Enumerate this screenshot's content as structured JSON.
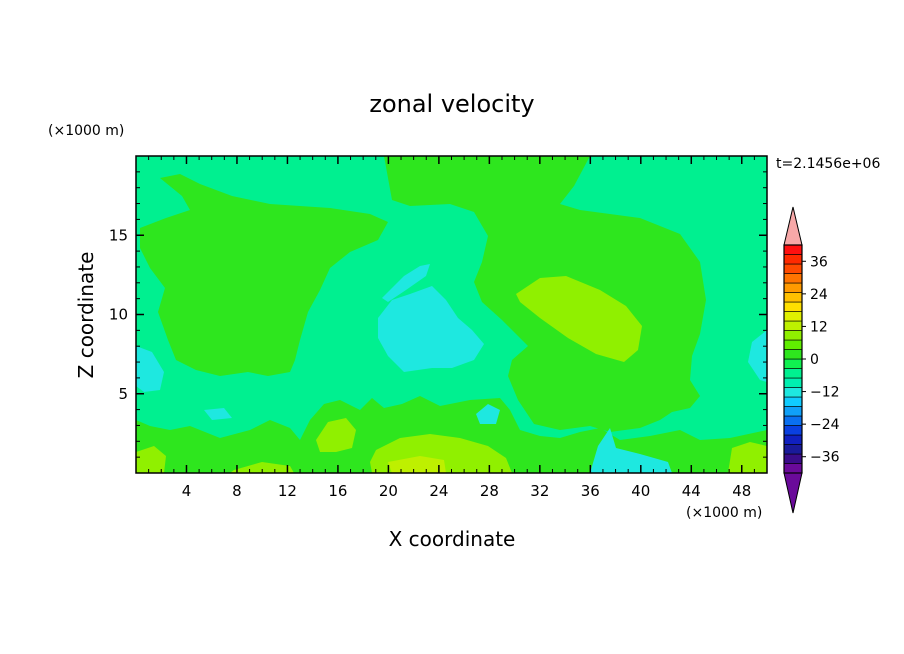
{
  "chart_data": {
    "type": "heatmap",
    "title": "zonal velocity",
    "xlabel": "X coordinate",
    "ylabel": "Z coordinate",
    "x_unit": "(×1000 m)",
    "y_unit": "(×1000 m)",
    "time_label": "t=2.1456e+06",
    "xlim": [
      0,
      50
    ],
    "ylim": [
      0,
      20
    ],
    "x_ticks": [
      4,
      8,
      12,
      16,
      20,
      24,
      28,
      32,
      36,
      40,
      44,
      48
    ],
    "y_ticks": [
      5,
      10,
      15
    ],
    "colorbar": {
      "levels": [
        -42,
        -39,
        -36,
        -33,
        -30,
        -27,
        -24,
        -21,
        -18,
        -15,
        -12,
        -9,
        -6,
        -3,
        0,
        3,
        6,
        9,
        12,
        15,
        18,
        21,
        24,
        27,
        30,
        33,
        36,
        39,
        42
      ],
      "tick_labels": [
        "36",
        "24",
        "12",
        "0",
        "−12",
        "−24",
        "−36"
      ],
      "colors": [
        "#6a0a9a",
        "#3a0c8a",
        "#1a1a9a",
        "#1020c0",
        "#0a40e0",
        "#0a70f0",
        "#10a0f8",
        "#10ccff",
        "#1ee8e0",
        "#00f0b0",
        "#00f090",
        "#10f050",
        "#2ee61e",
        "#60ee00",
        "#90f000",
        "#bef000",
        "#e0f000",
        "#ffe000",
        "#ffc000",
        "#ff9a00",
        "#ff7400",
        "#ff4a00",
        "#ff2a00",
        "#ff1010",
        "#f7a8a8"
      ],
      "extend_min": true,
      "extend_max": true
    },
    "field_description_levels": {
      "background": 0,
      "note": "contour regions read from the plot"
    },
    "regions": [
      {
        "level": -1.5,
        "color": "#00f090",
        "name": "background"
      },
      {
        "level": 1.5,
        "color": "#2ee61e",
        "name": "upper-left-lobe"
      },
      {
        "level": 1.5,
        "color": "#2ee61e",
        "name": "right-central-lobe"
      },
      {
        "level": 4.5,
        "color": "#90f000",
        "name": "right-ellipse"
      },
      {
        "level": -4.5,
        "color": "#1ee8e0",
        "name": "central-cyan"
      },
      {
        "level": 1.5,
        "color": "#2ee61e",
        "name": "bottom-band"
      },
      {
        "level": 4.5,
        "color": "#90f000",
        "name": "bottom-yellow-patches"
      },
      {
        "level": -4.5,
        "color": "#1ee8e0",
        "name": "bottom-cyan-patches"
      }
    ]
  }
}
